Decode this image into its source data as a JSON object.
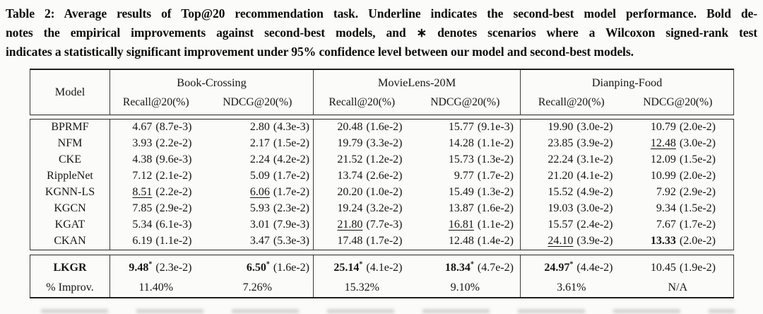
{
  "caption": {
    "lines": [
      "Table 2: Average results of Top@20 recommendation task. Underline indicates the second-best model performance. Bold de-",
      "notes the empirical improvements against second-best models, and ∗ denotes scenarios where a Wilcoxon signed-rank test",
      "indicates a statistically significant improvement under 95% confidence level between our model and second-best models."
    ]
  },
  "table": {
    "model_header": "Model",
    "significance_marker": "*",
    "groups": [
      {
        "label": "Book-Crossing",
        "metrics": [
          "Recall@20(%)",
          "NDCG@20(%)"
        ]
      },
      {
        "label": "MovieLens-20M",
        "metrics": [
          "Recall@20(%)",
          "NDCG@20(%)"
        ]
      },
      {
        "label": "Dianping-Food",
        "metrics": [
          "Recall@20(%)",
          "NDCG@20(%)"
        ]
      }
    ],
    "rows": [
      {
        "m": "BPRMF",
        "c": [
          {
            "v": "4.67",
            "s": "(8.7e-3)"
          },
          {
            "v": "2.80",
            "s": "(4.3e-3)"
          },
          {
            "v": "20.48",
            "s": "(1.6e-2)"
          },
          {
            "v": "15.77",
            "s": "(9.1e-3)"
          },
          {
            "v": "19.90",
            "s": "(3.0e-2)"
          },
          {
            "v": "10.79",
            "s": "(2.0e-2)"
          }
        ]
      },
      {
        "m": "NFM",
        "c": [
          {
            "v": "3.93",
            "s": "(2.2e-2)"
          },
          {
            "v": "2.17",
            "s": "(1.5e-2)"
          },
          {
            "v": "19.79",
            "s": "(3.3e-2)"
          },
          {
            "v": "14.28",
            "s": "(1.1e-2)"
          },
          {
            "v": "23.85",
            "s": "(3.9e-2)"
          },
          {
            "v": "12.48",
            "s": "(3.0e-2)",
            "u": true
          }
        ]
      },
      {
        "m": "CKE",
        "c": [
          {
            "v": "4.38",
            "s": "(9.6e-3)"
          },
          {
            "v": "2.24",
            "s": "(4.2e-2)"
          },
          {
            "v": "21.52",
            "s": "(1.2e-2)"
          },
          {
            "v": "15.73",
            "s": "(1.3e-2)"
          },
          {
            "v": "22.24",
            "s": "(3.1e-2)"
          },
          {
            "v": "12.09",
            "s": "(1.5e-2)"
          }
        ]
      },
      {
        "m": "RippleNet",
        "c": [
          {
            "v": "7.12",
            "s": "(2.1e-2)"
          },
          {
            "v": "5.09",
            "s": "(1.7e-2)"
          },
          {
            "v": "13.74",
            "s": "(2.6e-2)"
          },
          {
            "v": "9.77",
            "s": "(1.7e-2)"
          },
          {
            "v": "21.20",
            "s": "(4.1e-2)"
          },
          {
            "v": "10.99",
            "s": "(2.0e-2)"
          }
        ]
      },
      {
        "m": "KGNN-LS",
        "c": [
          {
            "v": "8.51",
            "s": "(2.2e-2)",
            "u": true
          },
          {
            "v": "6.06",
            "s": "(1.7e-2)",
            "u": true
          },
          {
            "v": "20.20",
            "s": "(1.0e-2)"
          },
          {
            "v": "15.49",
            "s": "(1.3e-2)"
          },
          {
            "v": "15.52",
            "s": "(4.9e-2)"
          },
          {
            "v": "7.92",
            "s": "(2.9e-2)"
          }
        ]
      },
      {
        "m": "KGCN",
        "c": [
          {
            "v": "7.85",
            "s": "(2.9e-2)"
          },
          {
            "v": "5.93",
            "s": "(2.3e-2)"
          },
          {
            "v": "19.24",
            "s": "(3.2e-2)"
          },
          {
            "v": "13.87",
            "s": "(1.6e-2)"
          },
          {
            "v": "19.03",
            "s": "(3.0e-2)"
          },
          {
            "v": "9.34",
            "s": "(1.5e-2)"
          }
        ]
      },
      {
        "m": "KGAT",
        "c": [
          {
            "v": "5.34",
            "s": "(6.1e-3)"
          },
          {
            "v": "3.01",
            "s": "(7.9e-3)"
          },
          {
            "v": "21.80",
            "s": "(7.7e-3)",
            "u": true
          },
          {
            "v": "16.81",
            "s": "(1.1e-2)",
            "u": true
          },
          {
            "v": "15.57",
            "s": "(2.4e-2)"
          },
          {
            "v": "7.67",
            "s": "(1.7e-2)"
          }
        ]
      },
      {
        "m": "CKAN",
        "c": [
          {
            "v": "6.19",
            "s": "(1.1e-2)"
          },
          {
            "v": "3.47",
            "s": "(5.3e-3)"
          },
          {
            "v": "17.48",
            "s": "(1.7e-2)"
          },
          {
            "v": "12.48",
            "s": "(1.4e-2)"
          },
          {
            "v": "24.10",
            "s": "(3.9e-2)",
            "u": true
          },
          {
            "v": "13.33",
            "s": "(2.0e-2)",
            "b": true
          }
        ]
      }
    ],
    "summary": {
      "model_row": {
        "m": "LKGR",
        "c": [
          {
            "v": "9.48",
            "s": "(2.3e-2)",
            "b": true,
            "star": true
          },
          {
            "v": "6.50",
            "s": "(1.6e-2)",
            "b": true,
            "star": true
          },
          {
            "v": "25.14",
            "s": "(4.1e-2)",
            "b": true,
            "star": true
          },
          {
            "v": "18.34",
            "s": "(4.7e-2)",
            "b": true,
            "star": true
          },
          {
            "v": "24.97",
            "s": "(4.4e-2)",
            "b": true,
            "star": true
          },
          {
            "v": "10.45",
            "s": "(1.9e-2)"
          }
        ]
      },
      "improv_row": {
        "m": "% Improv.",
        "c": [
          "11.40%",
          "7.26%",
          "15.32%",
          "9.10%",
          "3.61%",
          "N/A"
        ]
      }
    }
  }
}
